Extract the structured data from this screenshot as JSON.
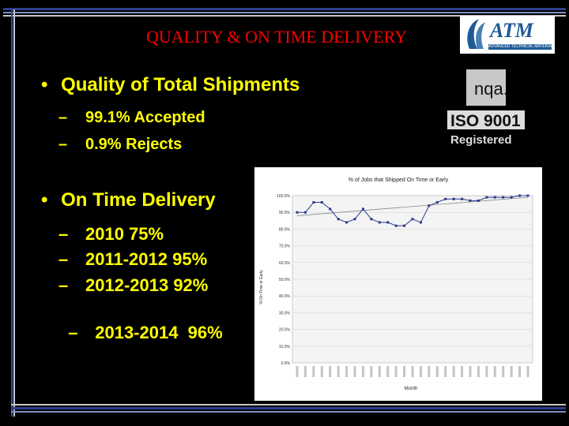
{
  "title": "QUALITY & ON TIME DELIVERY",
  "logo": {
    "name": "ATM",
    "tagline": "ADVANCED TECHNICAL MATERIALS INC."
  },
  "iso_badge": {
    "top": "nqa.",
    "middle": "ISO 9001",
    "bottom": "Registered"
  },
  "bullets": [
    {
      "marker": "•",
      "text": "Quality of Total Shipments",
      "items": [
        {
          "marker": "–",
          "text": "99.1% Accepted"
        },
        {
          "marker": "–",
          "text": "0.9% Rejects"
        }
      ]
    },
    {
      "marker": "•",
      "text": "On Time Delivery",
      "items": [
        {
          "marker": "–",
          "text": "2010 75%"
        },
        {
          "marker": "–",
          "text": "2011-2012 95%"
        },
        {
          "marker": "–",
          "text": "2012-2013 92%"
        },
        {
          "marker": "–",
          "text": "2013-2014  96%"
        }
      ]
    }
  ],
  "colors": {
    "title": "#ff0000",
    "text": "#ffff00",
    "background": "#000000",
    "logo_blue": "#1f5a96"
  },
  "chart_data": {
    "type": "line",
    "title": "% of Jobs that Shipped On Time or Early",
    "xlabel": "Month",
    "ylabel": "% On Time or Early",
    "ylim": [
      0,
      100
    ],
    "yticks": [
      "0.0%",
      "10.0%",
      "20.0%",
      "30.0%",
      "40.0%",
      "50.0%",
      "60.0%",
      "70.0%",
      "80.0%",
      "90.0%",
      "100.0%"
    ],
    "grid": true,
    "series": [
      {
        "values": [
          90,
          90,
          96,
          96,
          92,
          86,
          84,
          86,
          92,
          86,
          84,
          84,
          82,
          82,
          86,
          84,
          94,
          96,
          98,
          98,
          98,
          97,
          97,
          99,
          99,
          99,
          99,
          100,
          100
        ]
      },
      {
        "trendline": true,
        "values": [
          88,
          99
        ]
      }
    ],
    "colors": {
      "line": "#2b3a8c",
      "trend": "#888888"
    }
  }
}
